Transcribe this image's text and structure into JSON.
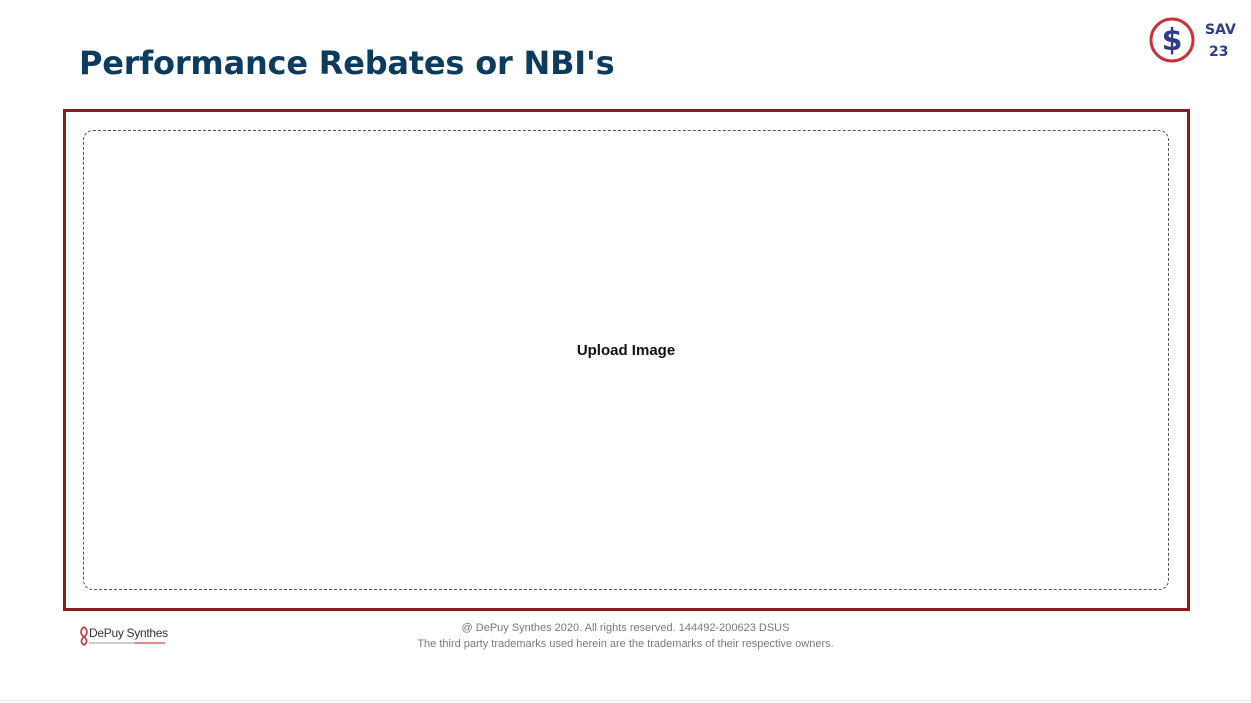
{
  "header": {
    "title": "Performance Rebates or NBI's"
  },
  "badge": {
    "icon": "dollar-circle-icon",
    "label": "SAV",
    "number": "23",
    "ring_color": "#c8323c",
    "symbol_color": "#2f3d8c"
  },
  "main": {
    "upload_label": "Upload Image",
    "frame_color": "#8b1a1f"
  },
  "footer": {
    "logo_text": "DePuy Synthes",
    "copyright": "@ DePuy Synthes 2020. All rights reserved. 144492-200623 DSUS",
    "trademark": "The third party trademarks used herein are the trademarks of their respective owners."
  }
}
